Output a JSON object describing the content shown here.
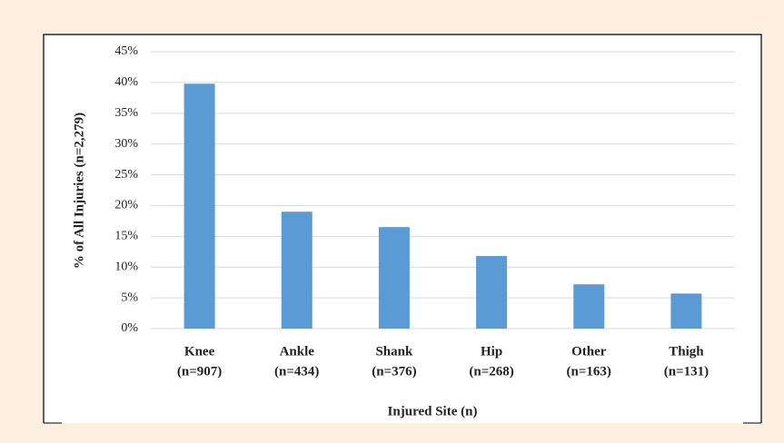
{
  "chart_data": {
    "type": "bar",
    "x_label": "Injured Site (n)",
    "y_label": "% of All Injuries  (n=2,279)",
    "categories": [
      "Knee",
      "Ankle",
      "Shank",
      "Hip",
      "Other",
      "Thigh"
    ],
    "category_counts": [
      "(n=907)",
      "(n=434)",
      "(n=376)",
      "(n=268)",
      "(n=163)",
      "(n=131)"
    ],
    "values": [
      39.8,
      19.0,
      16.5,
      11.8,
      7.2,
      5.7
    ],
    "color": "#5b9bd5",
    "ylim": [
      0,
      45
    ],
    "yticks": [
      {
        "value": 0,
        "label": "0%"
      },
      {
        "value": 5,
        "label": "5%"
      },
      {
        "value": 10,
        "label": "10%"
      },
      {
        "value": 15,
        "label": "15%"
      },
      {
        "value": 20,
        "label": "20%"
      },
      {
        "value": 25,
        "label": "25%"
      },
      {
        "value": 30,
        "label": "30%"
      },
      {
        "value": 35,
        "label": "35%"
      },
      {
        "value": 40,
        "label": "40%"
      },
      {
        "value": 45,
        "label": "45%"
      }
    ],
    "grid": true
  }
}
